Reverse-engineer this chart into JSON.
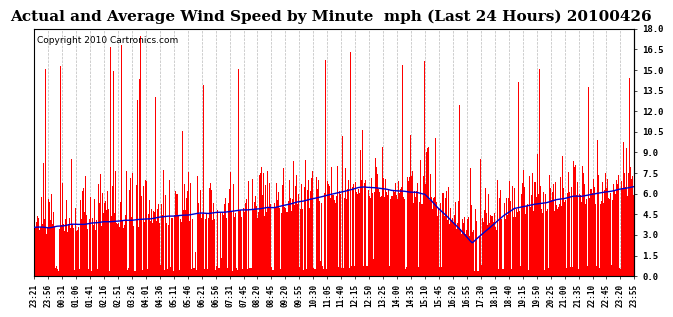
{
  "title": "Actual and Average Wind Speed by Minute  mph (Last 24 Hours) 20100426",
  "copyright": "Copyright 2010 Cartronics.com",
  "yticks": [
    0.0,
    1.5,
    3.0,
    4.5,
    6.0,
    7.5,
    9.0,
    10.5,
    12.0,
    13.5,
    15.0,
    16.5,
    18.0
  ],
  "ylim": [
    0.0,
    18.0
  ],
  "bar_color": "#FF0000",
  "line_color": "#0000CC",
  "background_color": "#FFFFFF",
  "grid_color": "#BBBBBB",
  "title_fontsize": 11,
  "copyright_fontsize": 6.5,
  "tick_labelsize": 5.5,
  "n_points": 1440
}
